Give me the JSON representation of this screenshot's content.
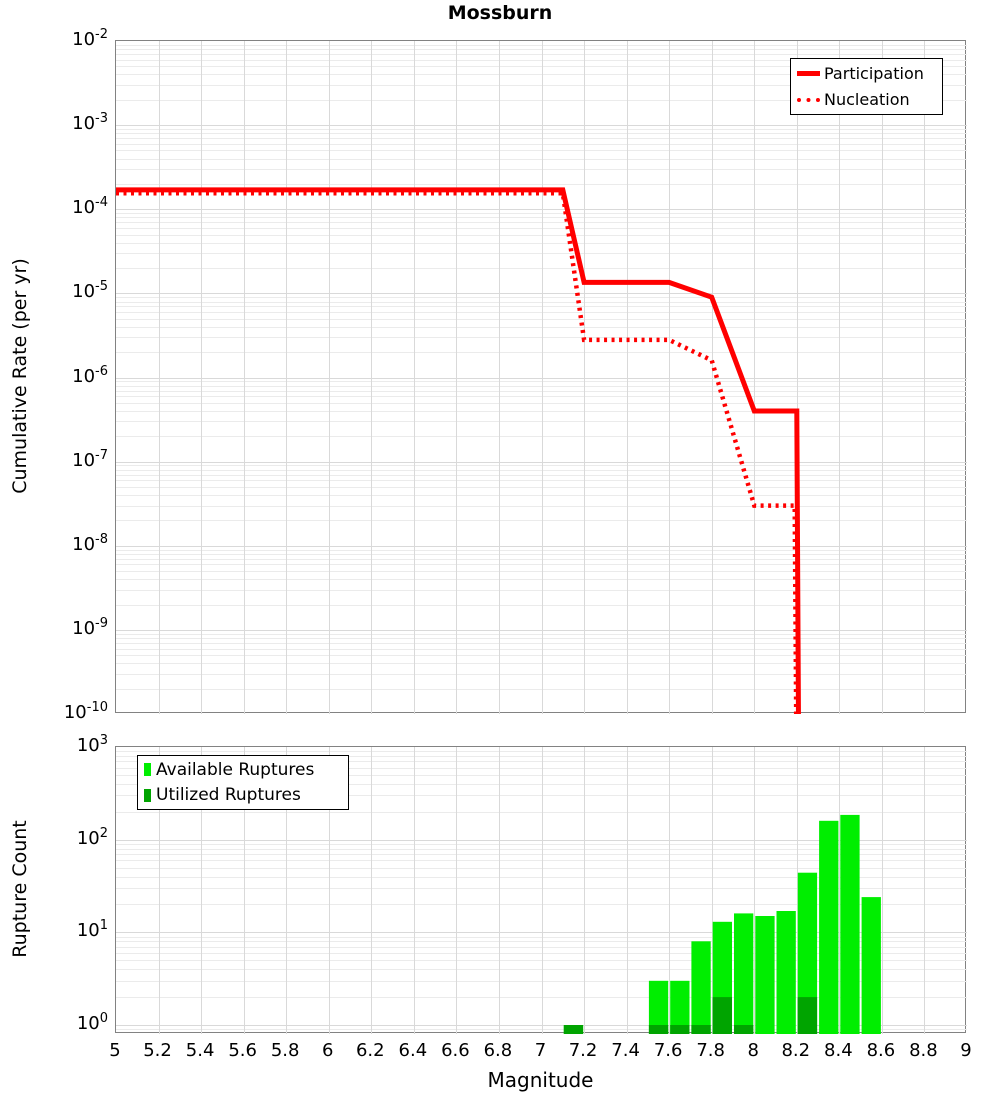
{
  "colors": {
    "participation": "#ff0000",
    "nucleation": "#ff0000",
    "available": "#00ee00",
    "utilized": "#00a400",
    "grid_minor": "#ebebeb",
    "grid_major": "#d9d9d9",
    "frame": "#828282"
  },
  "chart_data": [
    {
      "type": "line",
      "title": "Mossburn",
      "ylabel": "Cumulative Rate (per yr)",
      "xlabel": "",
      "xlim": [
        5,
        9
      ],
      "ylim": [
        1e-10,
        0.01
      ],
      "grid": true,
      "legend_position": "top-right",
      "y_tick_exponents": [
        -2,
        -3,
        -4,
        -5,
        -6,
        -7,
        -8,
        -9,
        -10
      ],
      "series": [
        {
          "name": "Participation",
          "style": "solid",
          "color": "#ff0000",
          "points": [
            [
              5.0,
              0.00017
            ],
            [
              7.1,
              0.00017
            ],
            [
              7.2,
              1.35e-05
            ],
            [
              7.6,
              1.35e-05
            ],
            [
              7.8,
              9e-06
            ],
            [
              8.0,
              4e-07
            ],
            [
              8.2,
              4e-07
            ],
            [
              8.21,
              1e-11
            ]
          ]
        },
        {
          "name": "Nucleation",
          "style": "dotted",
          "color": "#ff0000",
          "points": [
            [
              5.0,
              0.000155
            ],
            [
              7.1,
              0.000155
            ],
            [
              7.2,
              2.8e-06
            ],
            [
              7.6,
              2.8e-06
            ],
            [
              7.8,
              1.6e-06
            ],
            [
              8.0,
              3e-08
            ],
            [
              8.19,
              3e-08
            ],
            [
              8.2,
              1e-11
            ]
          ]
        }
      ]
    },
    {
      "type": "bar",
      "title": "",
      "ylabel": "Rupture Count",
      "xlabel": "Magnitude",
      "xlim": [
        5,
        9
      ],
      "ylim": [
        0.8,
        1000
      ],
      "grid": true,
      "legend_position": "top-left",
      "y_tick_exponents": [
        3,
        2,
        1,
        0
      ],
      "x_tick_labels": [
        "5",
        "5.2",
        "5.4",
        "5.6",
        "5.8",
        "6",
        "6.2",
        "6.4",
        "6.6",
        "6.8",
        "7",
        "7.2",
        "7.4",
        "7.6",
        "7.8",
        "8",
        "8.2",
        "8.4",
        "8.6",
        "8.8",
        "9"
      ],
      "bin_width": 0.1,
      "bin_centers": [
        7.15,
        7.55,
        7.65,
        7.75,
        7.85,
        7.95,
        8.05,
        8.15,
        8.25,
        8.35,
        8.45,
        8.55
      ],
      "series": [
        {
          "name": "Available Ruptures",
          "color": "#00ee00",
          "values": [
            1,
            3,
            3,
            8,
            13,
            16,
            15,
            17,
            44,
            160,
            185,
            24
          ]
        },
        {
          "name": "Utilized Ruptures",
          "color": "#00a400",
          "values": [
            1,
            1,
            1,
            1,
            2,
            1,
            0,
            0,
            2,
            0,
            0,
            0
          ]
        }
      ]
    }
  ]
}
